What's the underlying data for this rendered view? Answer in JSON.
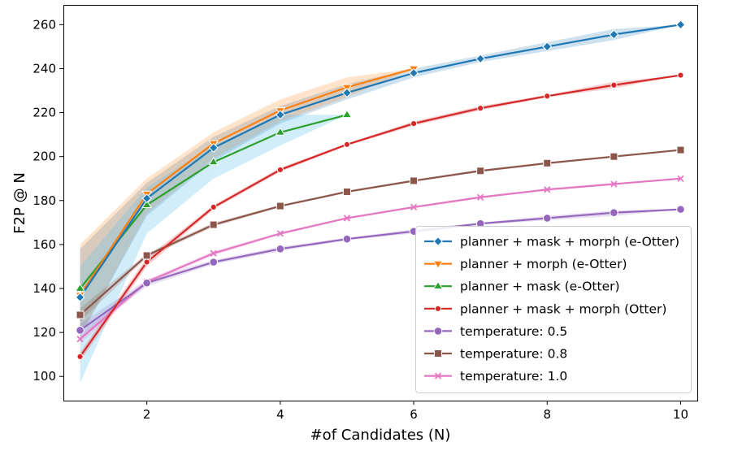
{
  "chart_data": {
    "type": "line",
    "title": "",
    "xlabel": "#of Candidates (N)",
    "ylabel": "F2P @ N",
    "xlim": [
      0.75,
      10.25
    ],
    "ylim": [
      89,
      269
    ],
    "xticks": [
      2,
      4,
      6,
      8,
      10
    ],
    "yticks": [
      100,
      120,
      140,
      160,
      180,
      200,
      220,
      240,
      260
    ],
    "grid": false,
    "legend_position": "lower right",
    "series": [
      {
        "name": "planner + mask + morph (e-Otter)",
        "color": "#1f77b4",
        "marker": "diamond",
        "x": [
          1,
          2,
          3,
          4,
          5,
          6,
          7,
          8,
          9,
          10
        ],
        "y": [
          136,
          181,
          204,
          219,
          229,
          238,
          244.5,
          250,
          255.5,
          260
        ],
        "lower": [
          118,
          173,
          198,
          215,
          226,
          236,
          243,
          248,
          253,
          260
        ],
        "upper": [
          158,
          188,
          209,
          223,
          233,
          240,
          246,
          252,
          258,
          260
        ]
      },
      {
        "name": "planner + morph (e-Otter)",
        "color": "#ff7f0e",
        "marker": "triangle-down",
        "x": [
          1,
          2,
          3,
          4,
          5,
          6
        ],
        "y": [
          137,
          183,
          206,
          221,
          231.5,
          240
        ],
        "lower": [
          118,
          174,
          199,
          216,
          227,
          240
        ],
        "upper": [
          160,
          190,
          211,
          226,
          236,
          240
        ]
      },
      {
        "name": "planner + mask (e-Otter)",
        "color": "#2ca02c",
        "marker": "triangle-up",
        "x": [
          1,
          2,
          3,
          4,
          5
        ],
        "y": [
          140,
          178,
          197.5,
          211,
          219
        ],
        "lower": [
          97,
          165,
          190,
          205,
          219
        ],
        "upper": [
          150,
          186,
          205,
          219,
          219
        ]
      },
      {
        "name": "planner + mask + morph (Otter)",
        "color": "#d62728",
        "marker": "circle",
        "x": [
          1,
          2,
          3,
          4,
          5,
          6,
          7,
          8,
          9,
          10
        ],
        "y": [
          109,
          152,
          177,
          194,
          205.5,
          215,
          222,
          227.5,
          232.5,
          237
        ],
        "lower": [
          107,
          150,
          176,
          193,
          205,
          214,
          221,
          227,
          231,
          237
        ],
        "upper": [
          111,
          154,
          178,
          195,
          206,
          216,
          223,
          228,
          234,
          237
        ]
      },
      {
        "name": "temperature: 0.5",
        "color": "#9467bd",
        "marker": "circle-large",
        "x": [
          1,
          2,
          3,
          4,
          5,
          6,
          7,
          8,
          9,
          10
        ],
        "y": [
          121,
          142.5,
          152,
          158,
          162.5,
          166,
          169.5,
          172,
          174.5,
          176
        ],
        "lower": [
          118,
          141,
          151,
          157,
          162,
          165,
          169,
          171,
          173,
          176
        ],
        "upper": [
          124,
          144,
          153,
          159,
          163,
          167,
          170,
          173,
          175.5,
          176
        ]
      },
      {
        "name": "temperature: 0.8",
        "color": "#8c564b",
        "marker": "square",
        "x": [
          1,
          2,
          3,
          4,
          5,
          6,
          7,
          8,
          9,
          10
        ],
        "y": [
          128,
          155,
          169,
          177.5,
          184,
          189,
          193.5,
          197,
          200,
          203
        ],
        "lower": [
          125,
          154,
          168,
          177,
          183.5,
          188.5,
          193,
          196.5,
          199.5,
          203
        ],
        "upper": [
          131,
          156,
          170,
          178,
          184.5,
          189.5,
          194,
          197.5,
          200.5,
          203
        ]
      },
      {
        "name": "temperature: 1.0",
        "color": "#e377c2",
        "marker": "x",
        "x": [
          1,
          2,
          3,
          4,
          5,
          6,
          7,
          8,
          9,
          10
        ],
        "y": [
          117,
          143,
          156,
          165,
          172,
          177,
          181.5,
          185,
          187.5,
          190
        ],
        "lower": [
          115,
          142,
          155,
          164.5,
          171.5,
          176.5,
          181,
          184.5,
          187,
          190
        ],
        "upper": [
          119,
          144,
          157,
          165.5,
          172.5,
          177.5,
          182,
          185.5,
          188,
          190
        ]
      }
    ]
  }
}
